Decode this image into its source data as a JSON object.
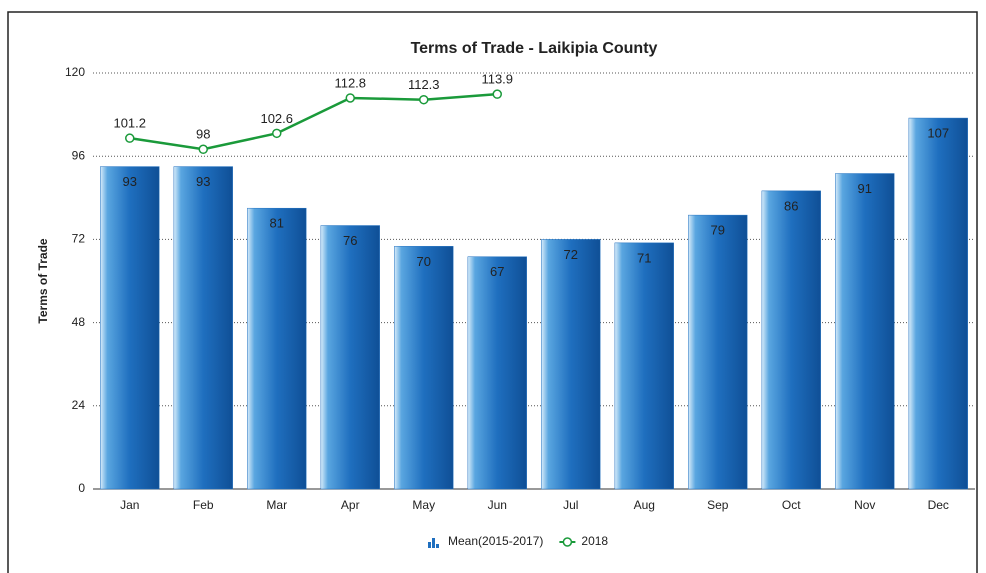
{
  "chart_data": {
    "type": "bar",
    "title": "Terms of Trade - Laikipia County",
    "y_label": "Terms of Trade",
    "categories": [
      "Jan",
      "Feb",
      "Mar",
      "Apr",
      "May",
      "Jun",
      "Jul",
      "Aug",
      "Sep",
      "Oct",
      "Nov",
      "Dec"
    ],
    "series": [
      {
        "name": "Mean(2015-2017)",
        "type": "bar",
        "color": "#1f6fbf",
        "values": [
          93,
          93,
          81,
          76,
          70,
          67,
          72,
          71,
          79,
          86,
          91,
          107
        ]
      },
      {
        "name": "2018",
        "type": "line",
        "color": "#1a9a3a",
        "values": [
          101.2,
          98,
          102.6,
          112.8,
          112.3,
          113.9,
          null,
          null,
          null,
          null,
          null,
          null
        ]
      }
    ],
    "ylim": [
      0,
      120
    ],
    "yticks": [
      0,
      24,
      48,
      72,
      96,
      120
    ],
    "grid": true,
    "legend": "bottom"
  }
}
